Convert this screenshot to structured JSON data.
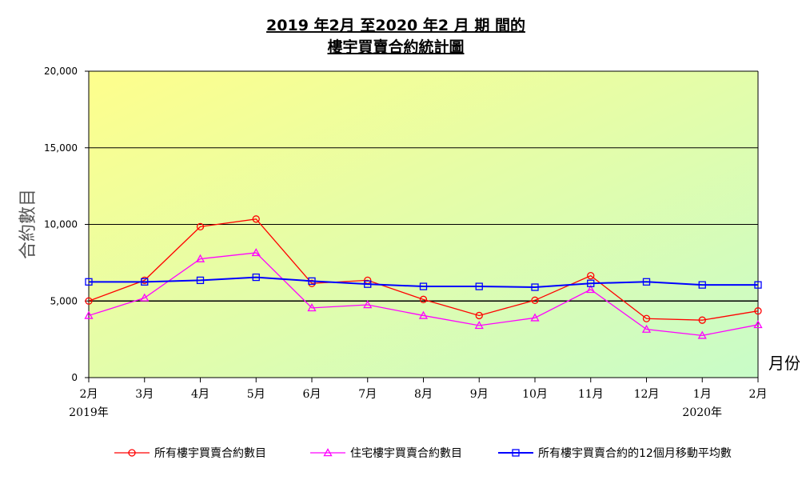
{
  "chart_data": {
    "type": "line",
    "title_line1": "2019 年2月 至2020 年2 月 期 間的",
    "title_line2": "樓宇買賣合約統計圖",
    "ylabel": "合約數目",
    "xlabel": "月份",
    "ylim": [
      0,
      20000
    ],
    "yticks": [
      0,
      5000,
      10000,
      15000,
      20000
    ],
    "ytick_labels": [
      "0",
      "5,000",
      "10,000",
      "15,000",
      "20,000"
    ],
    "categories": [
      "2月",
      "3月",
      "4月",
      "5月",
      "6月",
      "7月",
      "8月",
      "9月",
      "10月",
      "11月",
      "12月",
      "1月",
      "2月"
    ],
    "year_labels": [
      {
        "index": 0,
        "label": "2019年"
      },
      {
        "index": 11,
        "label": "2020年"
      }
    ],
    "grid": true,
    "legend_position": "bottom",
    "series": [
      {
        "name": "所有樓宇買賣合約數目",
        "color": "#ff0000",
        "marker": "circle",
        "values": [
          5000,
          6350,
          9850,
          10350,
          6150,
          6350,
          5100,
          4050,
          5050,
          6650,
          3850,
          3750,
          4350
        ]
      },
      {
        "name": "住宅樓宇買賣合約數目",
        "color": "#ff00ff",
        "marker": "triangle",
        "values": [
          4050,
          5200,
          7750,
          8150,
          4550,
          4750,
          4050,
          3400,
          3900,
          5750,
          3150,
          2750,
          3450
        ]
      },
      {
        "name": "所有樓宇買賣合約的12個月移動平均數",
        "color": "#0000ff",
        "marker": "square",
        "values": [
          6250,
          6250,
          6350,
          6550,
          6300,
          6100,
          5950,
          5950,
          5900,
          6150,
          6250,
          6050,
          6050
        ]
      }
    ]
  }
}
